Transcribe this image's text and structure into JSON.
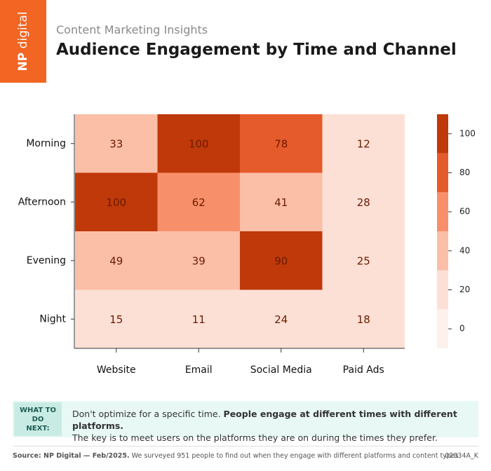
{
  "header": {
    "logo_bold": "NP",
    "logo_light": "digital",
    "subtitle": "Content Marketing Insights",
    "title": "Audience Engagement by Time and Channel"
  },
  "chart_data": {
    "type": "heatmap",
    "x_categories": [
      "Website",
      "Email",
      "Social Media",
      "Paid Ads"
    ],
    "y_categories": [
      "Morning",
      "Afternoon",
      "Evening",
      "Night"
    ],
    "values": [
      [
        33,
        100,
        78,
        12
      ],
      [
        100,
        62,
        41,
        28
      ],
      [
        49,
        39,
        90,
        25
      ],
      [
        15,
        11,
        24,
        18
      ]
    ],
    "colorbar": {
      "bins": [
        -10,
        10,
        30,
        50,
        70,
        90,
        110
      ],
      "colors": [
        "#fdf1ec",
        "#fde0d5",
        "#fbbea7",
        "#f7906a",
        "#e65b2b",
        "#bf390a"
      ],
      "ticks": [
        0,
        20,
        40,
        60,
        80,
        100
      ]
    }
  },
  "callout": {
    "label": "WHAT TO DO NEXT:",
    "text": "Don't optimize for a specific time.",
    "emphasis": "People engage at different times with different platforms.",
    "text2": "The key is to meet users on the platforms they are on during the times they prefer."
  },
  "footer": {
    "source": "Source: NP Digital — Feb/2025.",
    "note": "We surveyed 951 people to find out when they engage with different platforms and content types.",
    "code": "02034A_K"
  }
}
